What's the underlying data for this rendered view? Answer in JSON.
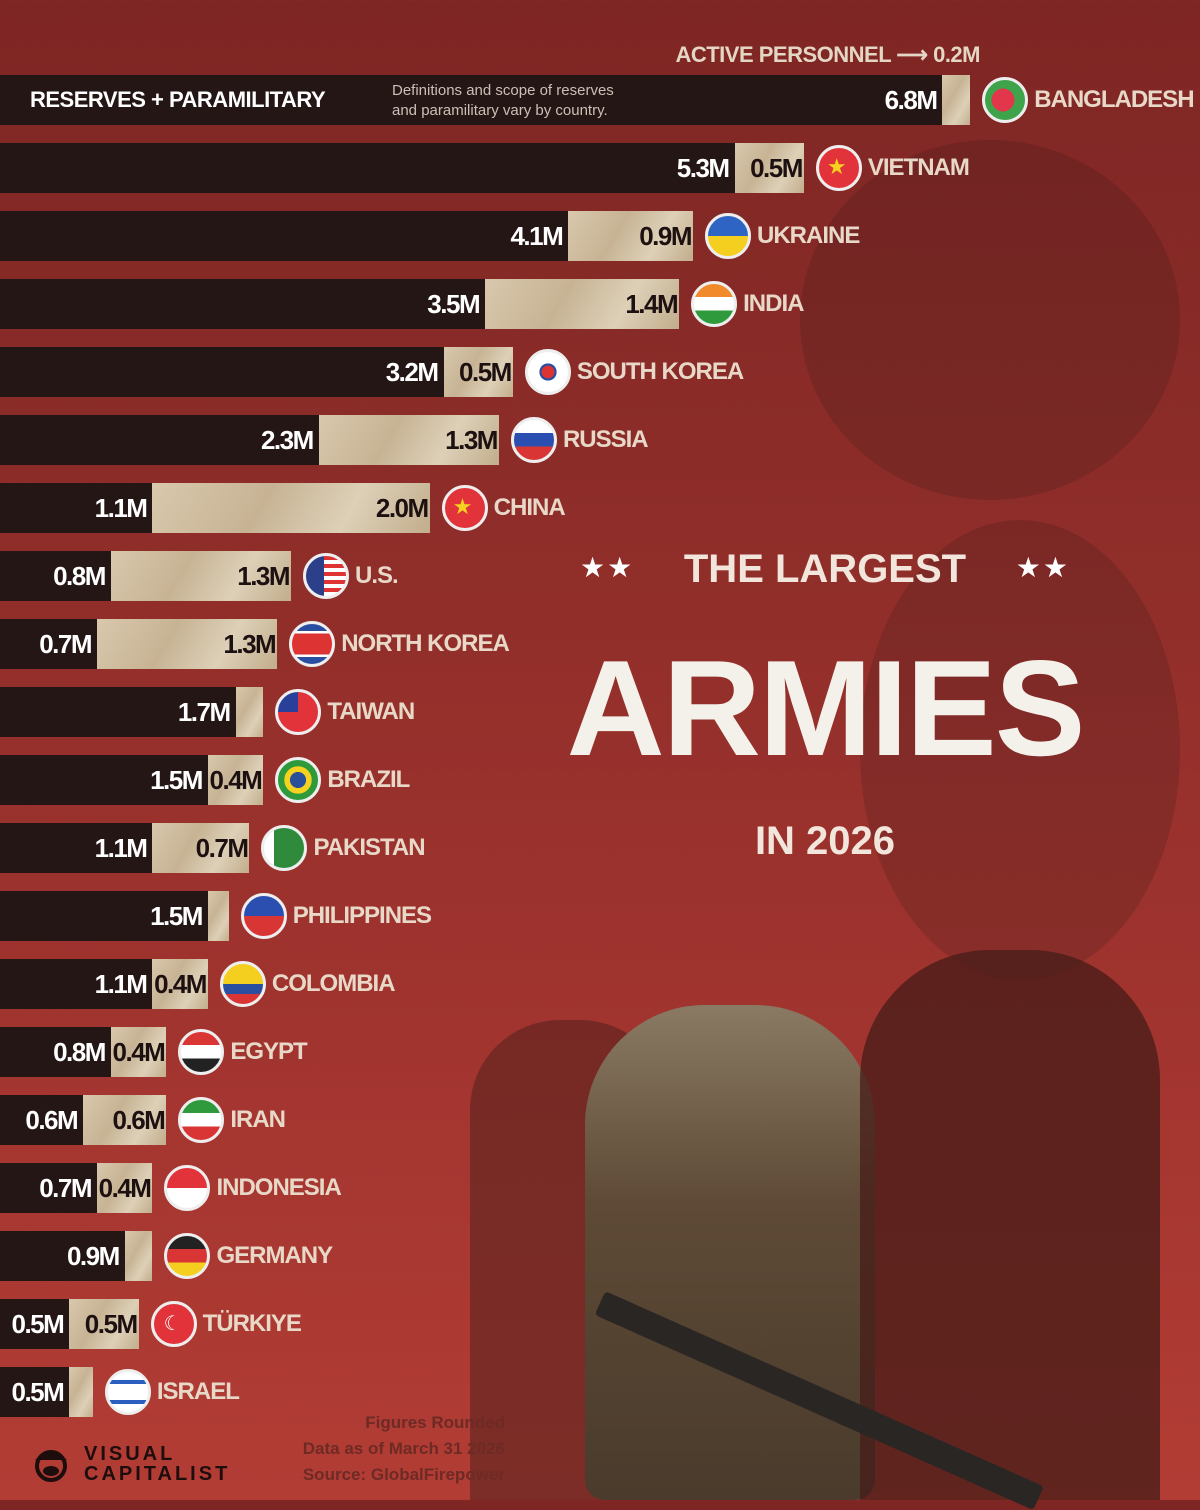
{
  "title": {
    "top": "THE LARGEST",
    "main": "ARMIES",
    "sub": "IN 2026",
    "stars": "★★"
  },
  "legend": {
    "reserves": "RESERVES + PARAMILITARY",
    "active": "ACTIVE PERSONNEL",
    "active_arrow": "⟶",
    "active_example": "0.2M",
    "note_line1": "Definitions and scope of reserves",
    "note_line2": "and paramilitary vary by country."
  },
  "notes": {
    "rounded": "Figures Rounded",
    "date": "Data as of March 31 2026",
    "source": "Source: GlobalFirepower"
  },
  "brand": {
    "line1": "VISUAL",
    "line2": "CAPITALIST"
  },
  "colors": {
    "reserves": "#251616",
    "active": "#d2c0a3",
    "background": "#9a312d"
  },
  "chart_data": {
    "type": "bar",
    "orientation": "horizontal",
    "stacked": true,
    "unit": "M",
    "categories": [
      "BANGLADESH",
      "VIETNAM",
      "UKRAINE",
      "INDIA",
      "SOUTH KOREA",
      "RUSSIA",
      "CHINA",
      "U.S.",
      "NORTH KOREA",
      "TAIWAN",
      "BRAZIL",
      "PAKISTAN",
      "PHILIPPINES",
      "COLOMBIA",
      "EGYPT",
      "IRAN",
      "INDONESIA",
      "GERMANY",
      "TÜRKIYE",
      "ISRAEL"
    ],
    "flags": [
      "flag-bangladesh",
      "flag-vietnam",
      "flag-ukraine",
      "flag-india",
      "flag-south-korea",
      "flag-russia",
      "flag-china",
      "flag-us",
      "flag-north-korea",
      "flag-taiwan",
      "flag-brazil",
      "flag-pakistan",
      "flag-philippines",
      "flag-colombia",
      "flag-egypt",
      "flag-iran",
      "flag-indonesia",
      "flag-germany",
      "flag-turkiye",
      "flag-israel"
    ],
    "series": [
      {
        "name": "RESERVES + PARAMILITARY",
        "values": [
          6.8,
          5.3,
          4.1,
          3.5,
          3.2,
          2.3,
          1.1,
          0.8,
          0.7,
          1.7,
          1.5,
          1.1,
          1.5,
          1.1,
          0.8,
          0.6,
          0.7,
          0.9,
          0.5,
          0.5
        ],
        "labels": [
          "6.8M",
          "5.3M",
          "4.1M",
          "3.5M",
          "3.2M",
          "2.3M",
          "1.1M",
          "0.8M",
          "0.7M",
          "1.7M",
          "1.5M",
          "1.1M",
          "1.5M",
          "1.1M",
          "0.8M",
          "0.6M",
          "0.7M",
          "0.9M",
          "0.5M",
          "0.5M"
        ]
      },
      {
        "name": "ACTIVE PERSONNEL",
        "values": [
          0.2,
          0.5,
          0.9,
          1.4,
          0.5,
          1.3,
          2.0,
          1.3,
          1.3,
          0.2,
          0.4,
          0.7,
          0.15,
          0.4,
          0.4,
          0.6,
          0.4,
          0.2,
          0.5,
          0.17
        ],
        "labels": [
          "",
          "0.5M",
          "0.9M",
          "1.4M",
          "0.5M",
          "1.3M",
          "2.0M",
          "1.3M",
          "1.3M",
          "",
          "0.4M",
          "0.7M",
          "",
          "0.4M",
          "0.4M",
          "0.6M",
          "0.4M",
          "",
          "0.5M",
          ""
        ]
      }
    ]
  }
}
